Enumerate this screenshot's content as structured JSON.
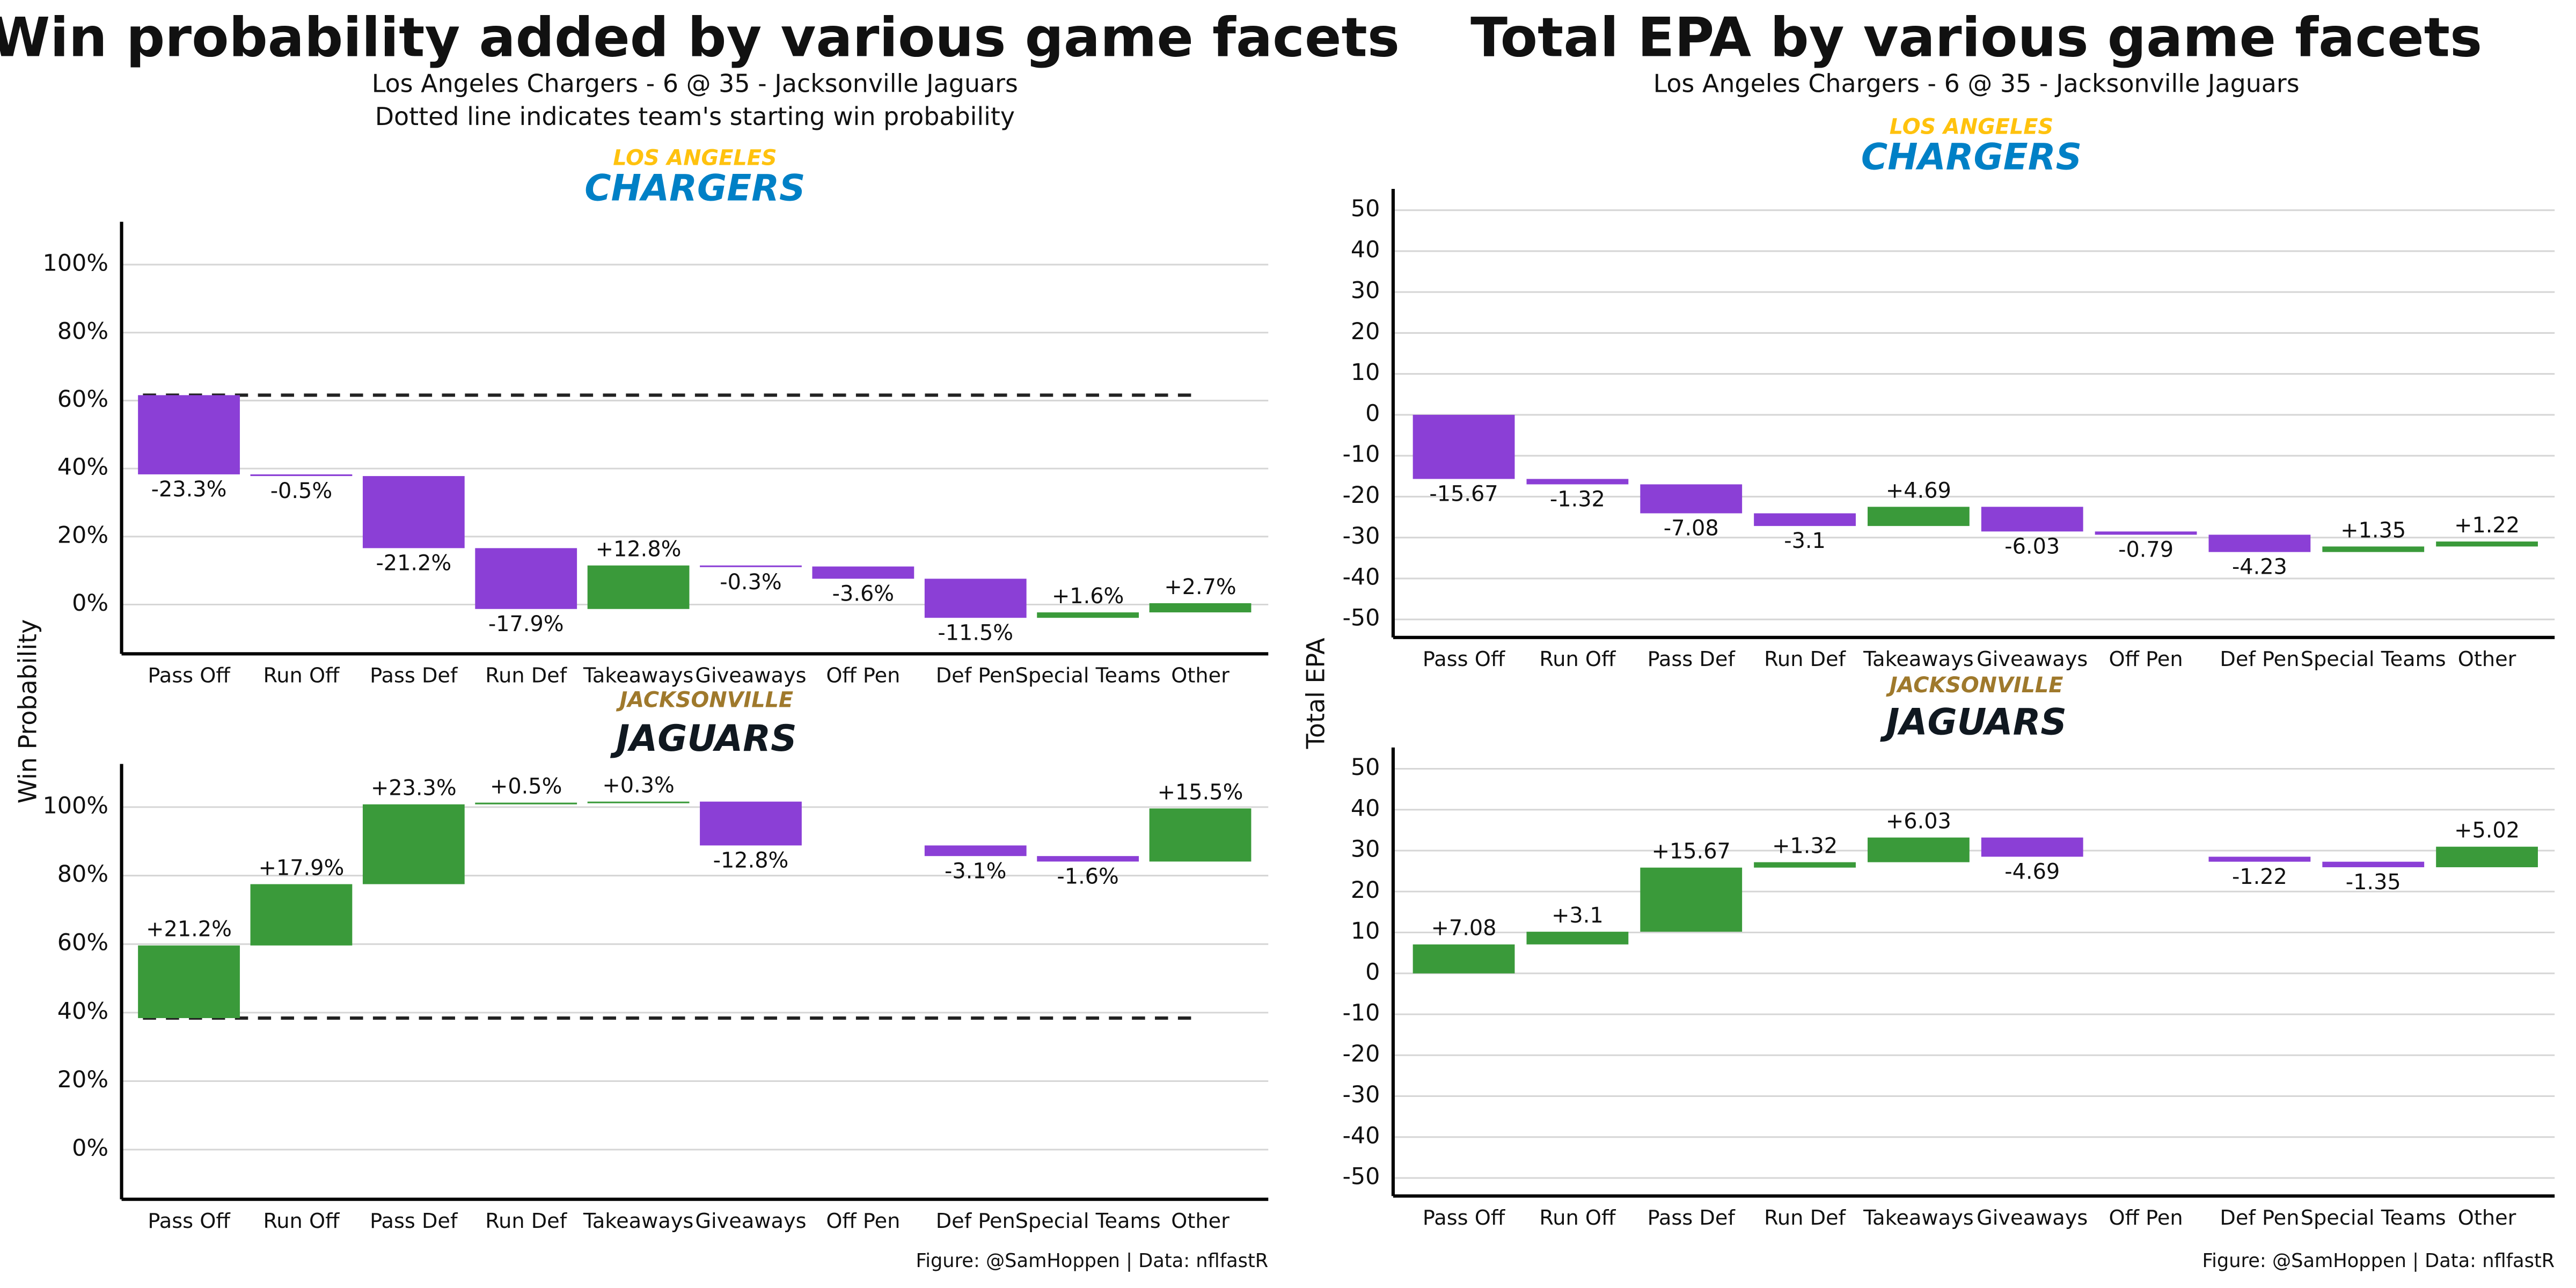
{
  "chart_data": [
    {
      "type": "waterfall",
      "title": "Win probability added by various game facets",
      "subtitle": [
        "Los Angeles Chargers - 6 @ 35 - Jacksonville Jaguars",
        "Dotted line indicates team's starting win probability"
      ],
      "ylabel": "Win Probability",
      "caption": "Figure: @SamHoppen | Data: nflfastR",
      "categories": [
        "Pass Off",
        "Run Off",
        "Pass Def",
        "Run Def",
        "Takeaways",
        "Giveaways",
        "Off Pen",
        "Def Pen",
        "Special Teams",
        "Other"
      ],
      "ylim": [
        -14.5,
        112.6
      ],
      "yticks": [
        {
          "value": 0,
          "label": "0%"
        },
        {
          "value": 20,
          "label": "20%"
        },
        {
          "value": 40,
          "label": "40%"
        },
        {
          "value": 60,
          "label": "60%"
        },
        {
          "value": 80,
          "label": "80%"
        },
        {
          "value": 100,
          "label": "100%"
        }
      ],
      "grid": true,
      "colors": {
        "increase": "#3a9a3a",
        "decrease": "#8b3fd6"
      },
      "panels": [
        {
          "team_city": "LOS ANGELES",
          "team_name": "CHARGERS",
          "start": 61.6,
          "values": [
            -23.3,
            -0.5,
            -21.2,
            -17.9,
            12.8,
            -0.3,
            -3.6,
            -11.5,
            1.6,
            2.7
          ],
          "value_labels": [
            "-23.3%",
            "-0.5%",
            "-21.2%",
            "-17.9%",
            "+12.8%",
            "-0.3%",
            "-3.6%",
            "-11.5%",
            "+1.6%",
            "+2.7%"
          ]
        },
        {
          "team_city": "JACKSONVILLE",
          "team_name": "JAGUARS",
          "start": 38.4,
          "values": [
            21.2,
            17.9,
            23.3,
            0.5,
            0.3,
            -12.8,
            null,
            -3.1,
            -1.6,
            15.5
          ],
          "value_labels": [
            "+21.2%",
            "+17.9%",
            "+23.3%",
            "+0.5%",
            "+0.3%",
            "-12.8%",
            null,
            "-3.1%",
            "-1.6%",
            "+15.5%"
          ]
        }
      ]
    },
    {
      "type": "waterfall",
      "title": "Total EPA by various game facets",
      "subtitle": [
        "Los Angeles Chargers - 6 @ 35 - Jacksonville Jaguars"
      ],
      "ylabel": "Total EPA",
      "caption": "Figure: @SamHoppen | Data: nflfastR",
      "categories": [
        "Pass Off",
        "Run Off",
        "Pass Def",
        "Run Def",
        "Takeaways",
        "Giveaways",
        "Off Pen",
        "Def Pen",
        "Special Teams",
        "Other"
      ],
      "ylim": [
        -54.4,
        55.2
      ],
      "yticks": [
        -50,
        -40,
        -30,
        -20,
        -10,
        0,
        10,
        20,
        30,
        40,
        50
      ],
      "grid": true,
      "colors": {
        "increase": "#3a9a3a",
        "decrease": "#8b3fd6"
      },
      "panels": [
        {
          "team_city": "LOS ANGELES",
          "team_name": "CHARGERS",
          "values": [
            -15.67,
            -1.32,
            -7.08,
            -3.1,
            4.69,
            -6.03,
            -0.79,
            -4.23,
            1.35,
            1.22
          ],
          "value_labels": [
            "-15.67",
            "-1.32",
            "-7.08",
            "-3.1",
            "+4.69",
            "-6.03",
            "-0.79",
            "-4.23",
            "+1.35",
            "+1.22"
          ]
        },
        {
          "team_city": "JACKSONVILLE",
          "team_name": "JAGUARS",
          "values": [
            7.08,
            3.1,
            15.67,
            1.32,
            6.03,
            -4.69,
            null,
            -1.22,
            -1.35,
            5.02
          ],
          "value_labels": [
            "+7.08",
            "+3.1",
            "+15.67",
            "+1.32",
            "+6.03",
            "-4.69",
            null,
            "-1.22",
            "-1.35",
            "+5.02"
          ]
        }
      ]
    }
  ]
}
